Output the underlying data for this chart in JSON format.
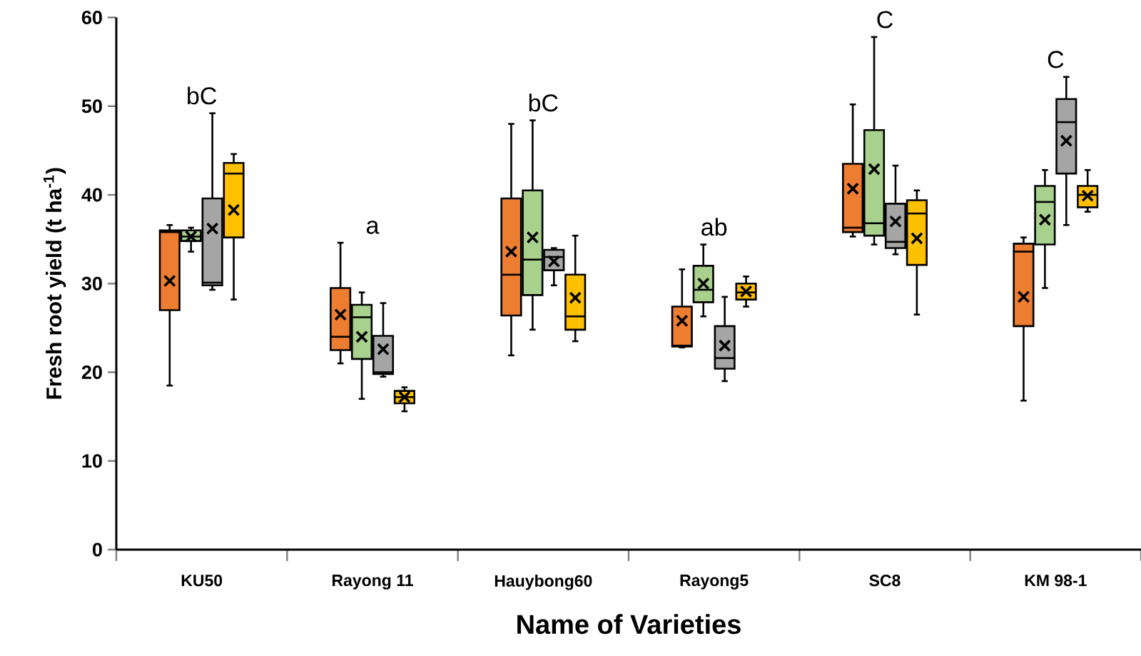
{
  "chart_data": {
    "type": "box",
    "xlabel": "Name of Varieties",
    "ylabel": "Fresh root yield (t ha$^{-1}$)",
    "categories": [
      "KU50",
      "Rayong 11",
      "Hauybong60",
      "Rayong5",
      "SC8",
      "KM 98-1"
    ],
    "ylim": [
      0,
      60
    ],
    "yticks": [
      0,
      10,
      20,
      30,
      40,
      50,
      60
    ],
    "grid": false,
    "series": [
      {
        "color": "#ed7d31",
        "boxes": [
          {
            "low": 18.5,
            "q1": 27.0,
            "median": 35.8,
            "q3": 36.0,
            "high": 36.6,
            "mean": 30.3
          },
          {
            "low": 21.0,
            "q1": 22.5,
            "median": 24.0,
            "q3": 29.5,
            "high": 34.6,
            "mean": 26.5
          },
          {
            "low": 21.9,
            "q1": 26.4,
            "median": 31.0,
            "q3": 39.6,
            "high": 48.0,
            "mean": 33.6
          },
          {
            "low": 22.8,
            "q1": 22.9,
            "median": 23.0,
            "q3": 27.4,
            "high": 31.6,
            "mean": 25.8
          },
          {
            "low": 35.3,
            "q1": 35.8,
            "median": 36.3,
            "q3": 43.5,
            "high": 50.2,
            "mean": 40.7
          },
          {
            "low": 16.8,
            "q1": 25.2,
            "median": 33.6,
            "q3": 34.5,
            "high": 35.2,
            "mean": 28.5
          }
        ]
      },
      {
        "color": "#a9d18e",
        "boxes": [
          {
            "low": 33.6,
            "q1": 34.8,
            "median": 35.3,
            "q3": 36.0,
            "high": 36.3,
            "mean": 35.3
          },
          {
            "low": 17.0,
            "q1": 21.5,
            "median": 26.2,
            "q3": 27.6,
            "high": 29.0,
            "mean": 24.0
          },
          {
            "low": 24.8,
            "q1": 28.7,
            "median": 32.7,
            "q3": 40.5,
            "high": 48.4,
            "mean": 35.2
          },
          {
            "low": 26.3,
            "q1": 27.9,
            "median": 29.3,
            "q3": 32.0,
            "high": 34.4,
            "mean": 30.0
          },
          {
            "low": 34.4,
            "q1": 35.4,
            "median": 36.8,
            "q3": 47.3,
            "high": 57.8,
            "mean": 42.9
          },
          {
            "low": 29.5,
            "q1": 34.4,
            "median": 39.2,
            "q3": 41.0,
            "high": 42.8,
            "mean": 37.2
          }
        ]
      },
      {
        "color": "#a5a5a5",
        "boxes": [
          {
            "low": 29.3,
            "q1": 29.8,
            "median": 30.1,
            "q3": 39.6,
            "high": 49.2,
            "mean": 36.2
          },
          {
            "low": 19.5,
            "q1": 19.8,
            "median": 20.0,
            "q3": 24.1,
            "high": 27.8,
            "mean": 22.6
          },
          {
            "low": 29.8,
            "q1": 31.5,
            "median": 33.0,
            "q3": 33.8,
            "high": 34.0,
            "mean": 32.5
          },
          {
            "low": 19.0,
            "q1": 20.4,
            "median": 21.6,
            "q3": 25.2,
            "high": 28.5,
            "mean": 23.0
          },
          {
            "low": 33.3,
            "q1": 34.0,
            "median": 34.7,
            "q3": 39.0,
            "high": 43.3,
            "mean": 37.0
          },
          {
            "low": 36.6,
            "q1": 42.4,
            "median": 48.2,
            "q3": 50.8,
            "high": 53.3,
            "mean": 46.1
          }
        ]
      },
      {
        "color": "#ffc000",
        "boxes": [
          {
            "low": 28.2,
            "q1": 35.2,
            "median": 42.4,
            "q3": 43.6,
            "high": 44.6,
            "mean": 38.3
          },
          {
            "low": 15.6,
            "q1": 16.5,
            "median": 17.2,
            "q3": 17.9,
            "high": 18.3,
            "mean": 17.2
          },
          {
            "low": 23.5,
            "q1": 24.8,
            "median": 26.3,
            "q3": 31.0,
            "high": 35.4,
            "mean": 28.4
          },
          {
            "low": 27.4,
            "q1": 28.2,
            "median": 29.0,
            "q3": 30.0,
            "high": 30.8,
            "mean": 29.1
          },
          {
            "low": 26.5,
            "q1": 32.1,
            "median": 37.9,
            "q3": 39.4,
            "high": 40.5,
            "mean": 35.1
          },
          {
            "low": 38.1,
            "q1": 38.6,
            "median": 40.0,
            "q3": 41.0,
            "high": 42.8,
            "mean": 39.9
          }
        ]
      }
    ],
    "annotations": [
      "bC",
      "a",
      "bC",
      "ab",
      "C",
      "C"
    ]
  }
}
